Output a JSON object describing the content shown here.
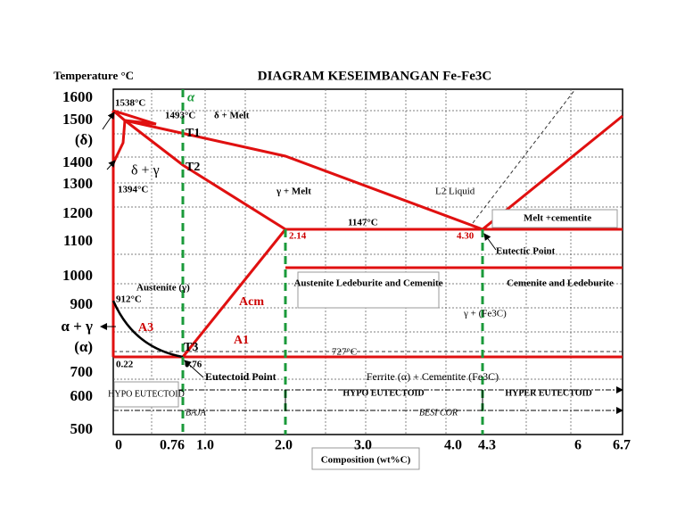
{
  "header": {
    "y_label": "Temperature °C",
    "title": "DIAGRAM KESEIMBANGAN Fe-Fe3C"
  },
  "y_labels": [
    "1600",
    "1500",
    "(δ)",
    "1400",
    "1300",
    "1200",
    "1100",
    "1000",
    "900",
    "α + γ",
    "(α)",
    "700",
    "600",
    "500"
  ],
  "x_labels": [
    "0",
    "0.76",
    "1.0",
    "2.0",
    "3.0",
    "4.0",
    "4.3",
    "6",
    "6.7"
  ],
  "x_title": "Composition (wt%C)",
  "annotations": {
    "t1538": "1538°C",
    "t1493": "1493°C",
    "delta_melt": "δ + Melt",
    "T1": "T1",
    "T2": "T2",
    "delta_gamma": "δ + γ",
    "t1394": "1394°C",
    "gamma_melt": "γ + Melt",
    "liquid": "L2 Liquid",
    "t1147": "1147°C",
    "c214": "2.14",
    "c430": "4.30",
    "melt_cem": "Melt +cementite",
    "eutectic": "Eutectic Point",
    "austenite": "Austenite (γ)",
    "t912": "912°C",
    "acm": "Acm",
    "aus_led": "Austenite Ledeburite and Cemenite",
    "cem_led": "Cemenite and Ledeburite",
    "gamma_fe3c": "γ + (Fe3C)",
    "A3": "A3",
    "A1": "A1",
    "T3": "T3",
    "t727": "727°C",
    "c022": "0.22",
    "c076": "0.76",
    "eutectoid": "Eutectoid Point",
    "ferrite_cem": "Ferrite (α) + Cementite (Fe3C)",
    "hypo_box": "HYPO EUTECTOID",
    "hypo": "HYPO EUTECTOID",
    "hyper": "HYPER EUTECTOID",
    "baja": "BAJA",
    "besi": "BESI COR",
    "alpha": "α"
  }
}
